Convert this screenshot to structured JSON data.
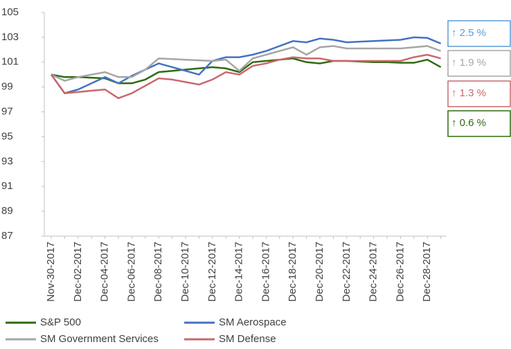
{
  "chart_data": {
    "type": "line",
    "categories": [
      "Nov-30-2017",
      null,
      "Dec-02-2017",
      null,
      "Dec-04-2017",
      null,
      "Dec-06-2017",
      null,
      "Dec-08-2017",
      null,
      "Dec-10-2017",
      null,
      "Dec-12-2017",
      null,
      "Dec-14-2017",
      null,
      "Dec-16-2017",
      null,
      "Dec-18-2017",
      null,
      "Dec-20-2017",
      null,
      "Dec-22-2017",
      null,
      "Dec-24-2017",
      null,
      "Dec-26-2017",
      null,
      "Dec-28-2017",
      null
    ],
    "series": [
      {
        "name": "S&P 500",
        "color": "#2e6b0e",
        "values": [
          100,
          99.8,
          99.8,
          99.75,
          99.7,
          99.3,
          99.3,
          99.6,
          100.2,
          100.3,
          100.4,
          100.5,
          100.6,
          100.5,
          100.2,
          101.0,
          101.1,
          101.2,
          101.3,
          101.0,
          100.9,
          101.1,
          101.1,
          101.05,
          101.0,
          101.0,
          100.95,
          100.95,
          101.2,
          100.6
        ]
      },
      {
        "name": "SM Aerospace",
        "color": "#4472c4",
        "values": [
          100,
          98.5,
          98.8,
          99.3,
          99.8,
          99.3,
          99.9,
          100.4,
          100.9,
          100.6,
          100.3,
          100.0,
          101.1,
          101.4,
          101.4,
          101.6,
          101.9,
          102.3,
          102.7,
          102.6,
          102.9,
          102.8,
          102.6,
          102.65,
          102.7,
          102.75,
          102.8,
          103.0,
          102.95,
          102.5
        ]
      },
      {
        "name": "SM Government Services",
        "color": "#a6a6a6",
        "values": [
          100,
          99.5,
          99.8,
          100.0,
          100.2,
          99.8,
          99.8,
          100.4,
          101.3,
          101.25,
          101.2,
          101.15,
          101.1,
          101.2,
          100.3,
          101.3,
          101.6,
          101.9,
          102.2,
          101.6,
          102.2,
          102.3,
          102.1,
          102.1,
          102.1,
          102.1,
          102.1,
          102.2,
          102.3,
          101.9
        ]
      },
      {
        "name": "SM Defense",
        "color": "#c9686e",
        "values": [
          100,
          98.5,
          98.6,
          98.7,
          98.8,
          98.1,
          98.5,
          99.1,
          99.7,
          99.6,
          99.4,
          99.2,
          99.6,
          100.2,
          100.0,
          100.7,
          100.9,
          101.2,
          101.4,
          101.3,
          101.3,
          101.1,
          101.1,
          101.1,
          101.1,
          101.1,
          101.1,
          101.4,
          101.6,
          101.3
        ]
      }
    ],
    "ylim": [
      87,
      105
    ],
    "yticks": [
      87,
      89,
      91,
      93,
      95,
      97,
      99,
      101,
      103,
      105
    ],
    "annotations": [
      {
        "text": "↑  2.5 %",
        "color": "#5b9bd5"
      },
      {
        "text": "↑  1.9 %",
        "color": "#a6a6a6"
      },
      {
        "text": "↑  1.3 %",
        "color": "#c9686e"
      },
      {
        "text": "↑  0.6 %",
        "color": "#2e6b0e"
      }
    ]
  }
}
